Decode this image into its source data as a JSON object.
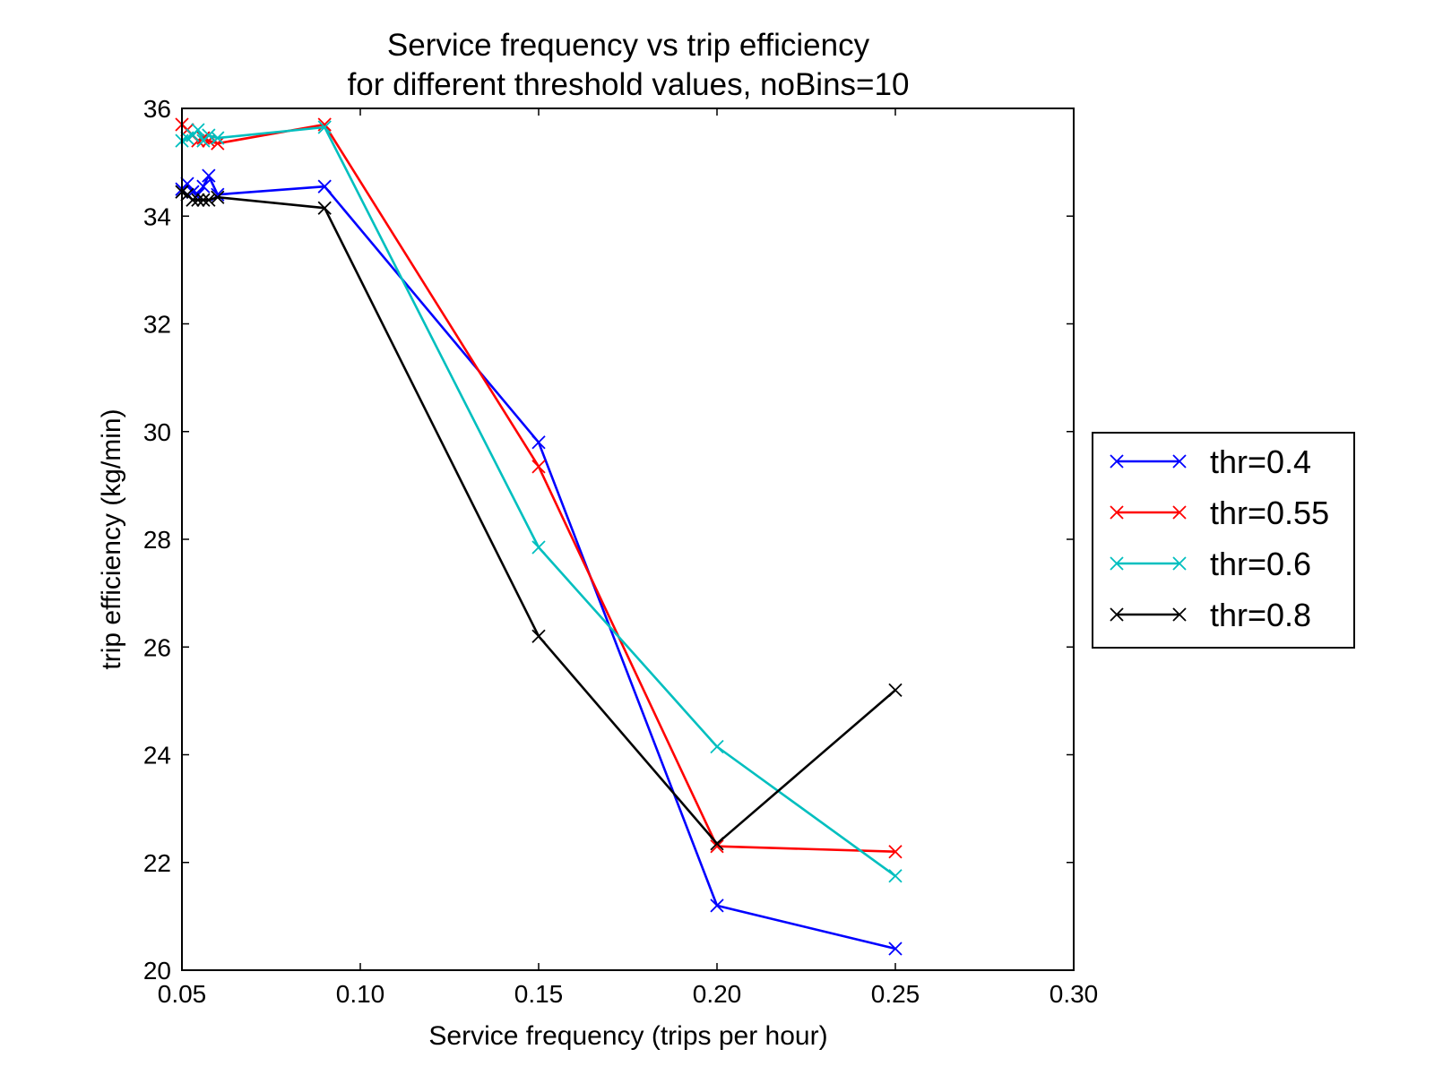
{
  "chart_data": {
    "type": "line",
    "title": "Service frequency vs trip efficiency",
    "subtitle": "for different threshold values, noBins=10",
    "xlabel": "Service frequency (trips per hour)",
    "ylabel": "trip efficiency (kg/min)",
    "xlim": [
      0.05,
      0.3
    ],
    "ylim": [
      20,
      36
    ],
    "xticks": [
      0.05,
      0.1,
      0.15,
      0.2,
      0.25,
      0.3
    ],
    "xtick_labels": [
      "0.05",
      "0.10",
      "0.15",
      "0.20",
      "0.25",
      "0.30"
    ],
    "yticks": [
      20,
      22,
      24,
      26,
      28,
      30,
      32,
      34,
      36
    ],
    "ytick_labels": [
      "20",
      "22",
      "24",
      "26",
      "28",
      "30",
      "32",
      "34",
      "36"
    ],
    "grid": false,
    "legend_position": "right, outside plot",
    "marker": "x",
    "series": [
      {
        "name": "thr=0.4",
        "color": "#0000ff",
        "x": [
          0.05,
          0.0515,
          0.053,
          0.0545,
          0.056,
          0.0575,
          0.06,
          0.09,
          0.15,
          0.2,
          0.25
        ],
        "y": [
          34.5,
          34.6,
          34.45,
          34.4,
          34.55,
          34.75,
          34.4,
          34.55,
          29.8,
          21.2,
          20.4
        ]
      },
      {
        "name": "thr=0.55",
        "color": "#ff0000",
        "x": [
          0.05,
          0.0515,
          0.053,
          0.0545,
          0.056,
          0.0575,
          0.06,
          0.09,
          0.15,
          0.2,
          0.25
        ],
        "y": [
          35.7,
          35.6,
          35.5,
          35.4,
          35.45,
          35.4,
          35.35,
          35.7,
          29.35,
          22.3,
          22.2
        ]
      },
      {
        "name": "thr=0.6",
        "color": "#00bfbf",
        "x": [
          0.05,
          0.0515,
          0.053,
          0.0545,
          0.056,
          0.0575,
          0.06,
          0.09,
          0.15,
          0.2,
          0.25
        ],
        "y": [
          35.4,
          35.45,
          35.5,
          35.6,
          35.4,
          35.5,
          35.45,
          35.65,
          27.85,
          24.15,
          21.75
        ]
      },
      {
        "name": "thr=0.8",
        "color": "#000000",
        "x": [
          0.05,
          0.0515,
          0.053,
          0.0545,
          0.056,
          0.0575,
          0.06,
          0.09,
          0.15,
          0.2,
          0.25
        ],
        "y": [
          34.45,
          34.4,
          34.3,
          34.3,
          34.3,
          34.3,
          34.35,
          34.15,
          26.2,
          22.35,
          25.2
        ]
      }
    ]
  }
}
